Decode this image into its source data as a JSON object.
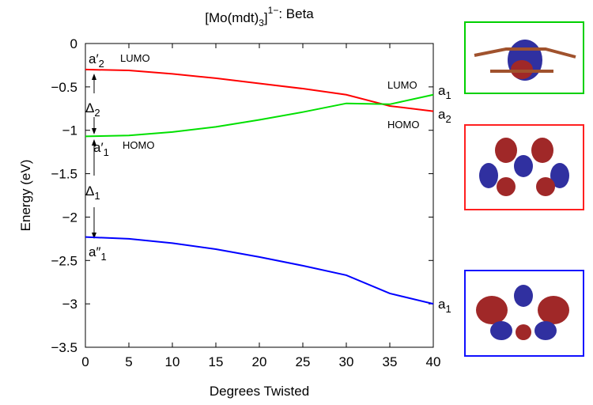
{
  "chart_data": {
    "type": "line",
    "title_parts": [
      "[Mo(mdt)",
      "3",
      "]",
      "1−",
      ": Beta"
    ],
    "xlabel": "Degrees Twisted",
    "ylabel": "Energy (eV)",
    "x": [
      0,
      5,
      10,
      15,
      20,
      25,
      30,
      35,
      40
    ],
    "series": [
      {
        "color": "#ff0000",
        "values": [
          -0.3,
          -0.31,
          -0.35,
          -0.4,
          -0.46,
          -0.52,
          -0.59,
          -0.72,
          -0.78
        ]
      },
      {
        "color": "#00e000",
        "values": [
          -1.07,
          -1.06,
          -1.02,
          -0.96,
          -0.88,
          -0.79,
          -0.69,
          -0.7,
          -0.59
        ]
      },
      {
        "color": "#0000ff",
        "values": [
          -2.23,
          -2.25,
          -2.3,
          -2.37,
          -2.46,
          -2.56,
          -2.67,
          -2.88,
          -3.0
        ]
      }
    ],
    "xlim": [
      0,
      40
    ],
    "ylim": [
      -3.5,
      0
    ],
    "xticks": [
      0,
      5,
      10,
      15,
      20,
      25,
      30,
      35,
      40
    ],
    "yticks": [
      0,
      {
        "value": -0.5,
        "label": "−0.5"
      },
      {
        "value": -1,
        "label": "−1"
      },
      {
        "value": -1.5,
        "label": "−1.5"
      },
      {
        "value": -2,
        "label": "−2"
      },
      {
        "value": -2.5,
        "label": "−2.5"
      },
      {
        "value": -3,
        "label": "−3"
      },
      {
        "value": -3.5,
        "label": "−3.5"
      }
    ],
    "annotations": [
      {
        "text": "a′",
        "sub": "2"
      },
      {
        "text": "LUMO"
      },
      {
        "text": "Δ",
        "sub": "2"
      },
      {
        "text": "a′",
        "sub": "1"
      },
      {
        "text": "HOMO"
      },
      {
        "text": "Δ",
        "sub": "1"
      },
      {
        "text": "a″",
        "sub": "1"
      },
      {
        "text": "LUMO"
      },
      {
        "text": "a",
        "sub": "1"
      },
      {
        "text": "a",
        "sub": "2"
      },
      {
        "text": "HOMO"
      },
      {
        "text": "a",
        "sub": "1"
      }
    ]
  }
}
